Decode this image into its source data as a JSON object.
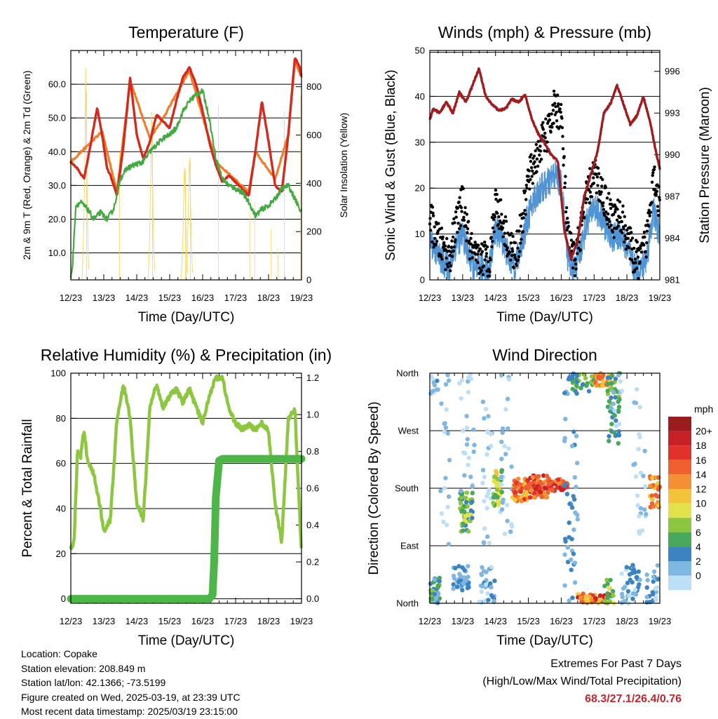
{
  "chart_data": [
    {
      "type": "line",
      "title": "Temperature (F)",
      "xlabel": "Time (Day/UTC)",
      "ylabel": "2m & 9m T (Red, Orange) & 2m Td (Green)",
      "ylabel_right": "Solar Insolation (Yellow)",
      "x_ticks": [
        "12/23",
        "13/23",
        "14/23",
        "15/23",
        "16/23",
        "17/23",
        "18/23",
        "19/23"
      ],
      "xlim": [
        0,
        7
      ],
      "ylim": [
        2.0,
        70.0
      ],
      "y_ticks": [
        "10.0",
        "20.0",
        "30.0",
        "40.0",
        "50.0",
        "60.0"
      ],
      "y2lim": [
        0,
        950
      ],
      "y2_ticks": [
        "0",
        "200",
        "400",
        "600",
        "800"
      ],
      "grid": "horizontal",
      "series": [
        {
          "color": "#d42a1e",
          "x": [
            0,
            0.2,
            0.4,
            0.6,
            0.8,
            0.95,
            1.1,
            1.2,
            1.4,
            1.6,
            1.8,
            2.0,
            2.2,
            2.4,
            2.6,
            2.8,
            3.0,
            3.2,
            3.4,
            3.6,
            3.8,
            4.0,
            4.2,
            4.4,
            4.6,
            4.8,
            5.0,
            5.2,
            5.4,
            5.6,
            5.8,
            6.0,
            6.2,
            6.4,
            6.6,
            6.8,
            6.95,
            7.0
          ],
          "y": [
            37,
            35,
            32,
            42,
            53,
            45,
            35,
            33,
            27,
            42,
            62,
            45,
            38,
            43,
            51,
            49,
            47,
            55,
            62,
            65,
            60,
            52,
            43,
            36,
            31,
            33,
            31,
            29,
            27,
            40,
            55,
            43,
            30,
            28,
            45,
            68,
            65,
            62
          ]
        },
        {
          "color": "#f07d2a",
          "x": [
            0,
            0.95,
            1.4,
            1.8,
            2.4,
            2.8,
            3.6,
            4.4,
            5.4,
            5.6,
            6.2,
            6.6,
            6.8,
            7.0
          ],
          "y": [
            37,
            46,
            28,
            61,
            44,
            50,
            64,
            37,
            28,
            40,
            32,
            45,
            67,
            62
          ]
        },
        {
          "color": "#42aa40",
          "x": [
            0,
            0.05,
            0.15,
            0.3,
            0.5,
            0.7,
            0.9,
            1.1,
            1.3,
            1.5,
            1.7,
            1.9,
            2.2,
            2.4,
            2.6,
            2.8,
            3.0,
            3.2,
            3.4,
            3.6,
            3.8,
            4.0,
            4.2,
            4.4,
            4.6,
            4.8,
            5.0,
            5.2,
            5.4,
            5.6,
            5.8,
            6.0,
            6.2,
            6.4,
            6.6,
            6.8,
            7.0
          ],
          "y": [
            3,
            6,
            24,
            25,
            23,
            20,
            22,
            20,
            23,
            32,
            35,
            36,
            37,
            40,
            42,
            44,
            45,
            47,
            52,
            55,
            57,
            58,
            50,
            38,
            32,
            30,
            29,
            28,
            25,
            21,
            23,
            24,
            26,
            29,
            30,
            26,
            22
          ]
        }
      ],
      "insolation_peaks": [
        {
          "x": 0.45,
          "y": 920
        },
        {
          "x": 1.45,
          "y": 620
        },
        {
          "x": 2.45,
          "y": 700
        },
        {
          "x": 3.45,
          "y": 540
        },
        {
          "x": 3.6,
          "y": 600
        },
        {
          "x": 4.45,
          "y": 850
        },
        {
          "x": 5.4,
          "y": 330
        },
        {
          "x": 5.55,
          "y": 380
        },
        {
          "x": 6.05,
          "y": 250
        },
        {
          "x": 6.25,
          "y": 150
        },
        {
          "x": 6.45,
          "y": 820
        },
        {
          "x": 6.95,
          "y": 900
        }
      ]
    },
    {
      "type": "line",
      "title": "Winds (mph) & Pressure (mb)",
      "xlabel": "Time (Day/UTC)",
      "ylabel": "Sonic Wind & Gust (Blue, Black)",
      "ylabel_right": "Station Pressure (Maroon)",
      "x_ticks": [
        "12/23",
        "13/23",
        "14/23",
        "15/23",
        "16/23",
        "17/23",
        "18/23",
        "19/23"
      ],
      "xlim": [
        0,
        7
      ],
      "ylim": [
        0,
        50
      ],
      "y_ticks": [
        "0",
        "10",
        "20",
        "30",
        "40",
        "50"
      ],
      "y2lim": [
        981,
        997.5
      ],
      "y2_ticks": [
        "981",
        "984",
        "987",
        "990",
        "993",
        "996"
      ],
      "grid": "horizontal",
      "series": [
        {
          "name": "wind",
          "color": "#4f94d4",
          "x": [
            0,
            0.2,
            0.4,
            0.6,
            0.8,
            1.0,
            1.2,
            1.4,
            1.6,
            1.8,
            2.0,
            2.2,
            2.4,
            2.6,
            2.8,
            3.0,
            3.2,
            3.4,
            3.6,
            3.8,
            4.0,
            4.2,
            4.4,
            4.6,
            4.8,
            5.0,
            5.2,
            5.4,
            5.6,
            5.8,
            6.0,
            6.2,
            6.4,
            6.6,
            6.8,
            7.0
          ],
          "y": [
            9,
            6,
            4,
            3,
            8,
            10,
            5,
            2,
            3,
            2,
            11,
            9,
            5,
            3,
            8,
            14,
            18,
            20,
            21,
            23,
            21,
            5,
            2,
            7,
            13,
            16,
            14,
            11,
            9,
            10,
            7,
            3,
            2,
            5,
            15,
            10
          ]
        },
        {
          "name": "gust",
          "color": "#000000",
          "x": [
            0,
            0.2,
            0.4,
            0.6,
            0.8,
            1.0,
            1.2,
            1.4,
            1.6,
            1.8,
            2.0,
            2.2,
            2.4,
            2.6,
            2.8,
            3.0,
            3.2,
            3.4,
            3.6,
            3.8,
            4.0,
            4.2,
            4.4,
            4.6,
            4.8,
            5.0,
            5.2,
            5.4,
            5.6,
            5.8,
            6.0,
            6.2,
            6.4,
            6.6,
            6.8,
            7.0
          ],
          "y": [
            14,
            9,
            7,
            5,
            12,
            17,
            8,
            4,
            5,
            4,
            17,
            13,
            8,
            5,
            12,
            22,
            26,
            30,
            32,
            38,
            36,
            9,
            4,
            11,
            19,
            23,
            20,
            16,
            13,
            14,
            10,
            5,
            4,
            9,
            24,
            16
          ]
        },
        {
          "name": "pressure",
          "color": "#a01c1e",
          "x": [
            0,
            0.1,
            0.3,
            0.5,
            0.7,
            0.9,
            1.1,
            1.3,
            1.5,
            1.7,
            1.9,
            2.1,
            2.3,
            2.5,
            2.7,
            2.9,
            3.1,
            3.3,
            3.5,
            3.7,
            3.9,
            4.1,
            4.3,
            4.5,
            4.7,
            4.9,
            5.1,
            5.3,
            5.5,
            5.7,
            5.9,
            6.1,
            6.3,
            6.5,
            6.7,
            6.9,
            7.0
          ],
          "y": [
            992.5,
            993.3,
            993.0,
            993.8,
            993.0,
            994.5,
            993.8,
            995.0,
            996.2,
            994.2,
            993.6,
            993.2,
            993.3,
            994.0,
            993.8,
            994.3,
            992.6,
            991.5,
            990.8,
            990.0,
            989.5,
            984.5,
            982.5,
            983.8,
            987.0,
            988.6,
            990.2,
            993.0,
            993.7,
            995.0,
            993.6,
            992.2,
            992.8,
            994.2,
            992.4,
            990.0,
            989.0
          ]
        }
      ]
    },
    {
      "type": "line",
      "title": "Relative Humidity (%) & Precipitation (in)",
      "xlabel": "Time (Day/UTC)",
      "ylabel": "Percent & Total Rainfall",
      "x_ticks": [
        "12/23",
        "13/23",
        "14/23",
        "15/23",
        "16/23",
        "17/23",
        "18/23",
        "19/23"
      ],
      "xlim": [
        0,
        7
      ],
      "ylim": [
        -2,
        100
      ],
      "y_ticks": [
        "0",
        "20",
        "40",
        "60",
        "80",
        "100"
      ],
      "y2lim": [
        -0.0245,
        1.225
      ],
      "y2_ticks": [
        "0.0",
        "0.2",
        "0.4",
        "0.6",
        "0.8",
        "1.0",
        "1.2"
      ],
      "grid": "horizontal",
      "series": [
        {
          "name": "relative humidity",
          "color": "#8dc63f",
          "x": [
            0,
            0.1,
            0.2,
            0.3,
            0.4,
            0.5,
            0.7,
            0.9,
            1.0,
            1.2,
            1.4,
            1.6,
            1.8,
            2.0,
            2.2,
            2.4,
            2.6,
            2.8,
            3.0,
            3.2,
            3.4,
            3.6,
            3.8,
            4.0,
            4.2,
            4.4,
            4.6,
            4.8,
            5.0,
            5.2,
            5.4,
            5.6,
            5.8,
            6.0,
            6.2,
            6.4,
            6.6,
            6.8,
            7.0
          ],
          "y": [
            22,
            25,
            65,
            63,
            75,
            62,
            55,
            40,
            30,
            35,
            80,
            95,
            80,
            42,
            35,
            85,
            95,
            85,
            90,
            93,
            87,
            93,
            85,
            78,
            90,
            98,
            98,
            84,
            78,
            75,
            77,
            75,
            78,
            74,
            42,
            25,
            80,
            84,
            20
          ]
        },
        {
          "name": "total precipitation",
          "color": "#4cb748",
          "x": [
            0,
            4.2,
            4.3,
            4.35,
            4.4,
            4.5,
            4.6,
            7.0
          ],
          "y": [
            0,
            0,
            0.02,
            0.2,
            0.55,
            0.75,
            0.76,
            0.76
          ]
        }
      ]
    },
    {
      "type": "scatter",
      "title": "Wind Direction",
      "xlabel": "Time (Day/UTC)",
      "ylabel": "Direction (Colored By Speed)",
      "x_ticks": [
        "12/23",
        "13/23",
        "14/23",
        "15/23",
        "16/23",
        "17/23",
        "18/23",
        "19/23"
      ],
      "xlim": [
        0,
        7
      ],
      "ylim": [
        0,
        360
      ],
      "y_ticks": [
        "North",
        "East",
        "South",
        "West",
        "North"
      ],
      "legend_title": "mph",
      "legend_placement": "right",
      "legend_labels": [
        "20+",
        "18",
        "16",
        "14",
        "12",
        "10",
        "8",
        "6",
        "4",
        "2",
        "0"
      ],
      "legend_colors": [
        "#9a1b1e",
        "#c72027",
        "#e0322b",
        "#ee612e",
        "#f58f34",
        "#f3c43a",
        "#e3e24a",
        "#8cc63f",
        "#47a85b",
        "#3c83c2",
        "#7fb7e3",
        "#bddff5"
      ]
    }
  ],
  "info": {
    "location": "Location: Copake",
    "elevation": "Station elevation: 208.849 m",
    "latlon": "Station lat/lon: 42.1366; -73.5199",
    "created": "Figure created on Wed, 2025-03-19, at 23:39 UTC",
    "recent": "Most recent data timestamp: 2025/03/19 23:15:00"
  },
  "extremes": {
    "line1": "Extremes For Past 7 Days",
    "line2": "(High/Low/Max Wind/Total Precipitation)",
    "values": "68.3/27.1/26.4/0.76"
  }
}
